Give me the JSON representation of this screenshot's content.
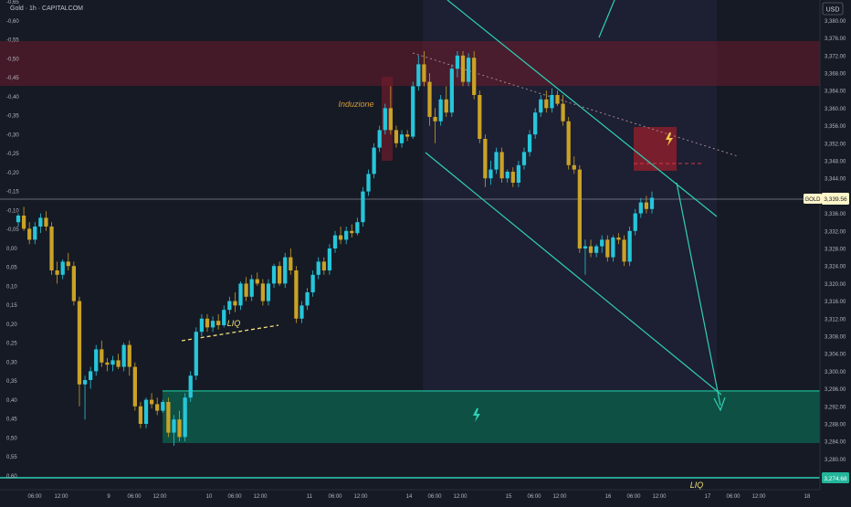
{
  "chart_data": {
    "type": "candlestick",
    "title": "Gold · 1h · CAPITALCOM",
    "currency": "USD",
    "symbol_tag": "GOLD",
    "current_price_label": "3,339.56",
    "last_price": 3339.56,
    "bottom_price_label": "3,274.68",
    "y_right_ticks": [
      "3,380.00",
      "3,376.00",
      "3,372.00",
      "3,368.00",
      "3,364.00",
      "3,360.00",
      "3,356.00",
      "3,352.00",
      "3,348.00",
      "3,344.00",
      "3,340.00",
      "3,336.00",
      "3,332.00",
      "3,328.00",
      "3,324.00",
      "3,320.00",
      "3,316.00",
      "3,312.00",
      "3,308.00",
      "3,304.00",
      "3,300.00",
      "3,296.00",
      "3,292.00",
      "3,288.00",
      "3,284.00",
      "3,280.00",
      "3,276.00"
    ],
    "y_left_ticks": [
      "-0,65",
      "-0,60",
      "-0,55",
      "-0,50",
      "-0,45",
      "-0,40",
      "-0,35",
      "-0,30",
      "-0,25",
      "-0,20",
      "-0,15",
      "-0,10",
      "-0,05",
      "0,00",
      "0,05",
      "0,10",
      "0,15",
      "0,20",
      "0,25",
      "0,30",
      "0,35",
      "0,40",
      "0,45",
      "0,50",
      "0,55",
      "0,60"
    ],
    "x_ticks": [
      "06:00",
      "12:00",
      "9",
      "06:00",
      "12:00",
      "10",
      "06:00",
      "12:00",
      "11",
      "06:00",
      "12:00",
      "14",
      "06:00",
      "12:00",
      "15",
      "06:00",
      "12:00",
      "16",
      "06:00",
      "12:00",
      "17",
      "06:00",
      "12:00",
      "18"
    ],
    "ylim": [
      3273,
      3383
    ],
    "colors": {
      "up": "#26c6da",
      "down": "#c9a227",
      "resistance_zone": "#7a1f2f",
      "support_zone": "#0e5e4c",
      "trendline": "#36d3b8",
      "dotted": "#f1e27a"
    },
    "annotations": {
      "induzione": "Induzione",
      "liq_left": "LIQ",
      "liq_bottom": "LIQ"
    },
    "candles": [
      {
        "o": 3334.0,
        "h": 3336.0,
        "l": 3333.0,
        "c": 3335.5
      },
      {
        "o": 3335.5,
        "h": 3337.5,
        "l": 3332.0,
        "c": 3332.5
      },
      {
        "o": 3332.5,
        "h": 3334.0,
        "l": 3329.0,
        "c": 3330.0
      },
      {
        "o": 3330.0,
        "h": 3334.0,
        "l": 3329.0,
        "c": 3333.0
      },
      {
        "o": 3333.0,
        "h": 3336.0,
        "l": 3331.5,
        "c": 3335.0
      },
      {
        "o": 3335.0,
        "h": 3336.5,
        "l": 3332.0,
        "c": 3333.0
      },
      {
        "o": 3333.0,
        "h": 3334.0,
        "l": 3322.0,
        "c": 3323.0
      },
      {
        "o": 3323.0,
        "h": 3325.0,
        "l": 3320.0,
        "c": 3322.0
      },
      {
        "o": 3322.0,
        "h": 3325.5,
        "l": 3321.0,
        "c": 3325.0
      },
      {
        "o": 3325.0,
        "h": 3327.0,
        "l": 3323.0,
        "c": 3324.0
      },
      {
        "o": 3324.0,
        "h": 3325.0,
        "l": 3315.0,
        "c": 3316.0
      },
      {
        "o": 3316.0,
        "h": 3317.0,
        "l": 3292.0,
        "c": 3297.0
      },
      {
        "o": 3297.0,
        "h": 3299.0,
        "l": 3289.0,
        "c": 3298.0
      },
      {
        "o": 3298.0,
        "h": 3301.0,
        "l": 3296.0,
        "c": 3300.0
      },
      {
        "o": 3300.0,
        "h": 3306.0,
        "l": 3299.0,
        "c": 3305.0
      },
      {
        "o": 3305.0,
        "h": 3307.0,
        "l": 3301.0,
        "c": 3302.0
      },
      {
        "o": 3302.0,
        "h": 3303.0,
        "l": 3300.0,
        "c": 3301.5
      },
      {
        "o": 3301.5,
        "h": 3303.5,
        "l": 3300.0,
        "c": 3302.5
      },
      {
        "o": 3302.5,
        "h": 3304.0,
        "l": 3300.5,
        "c": 3301.0
      },
      {
        "o": 3301.0,
        "h": 3306.5,
        "l": 3300.0,
        "c": 3306.0
      },
      {
        "o": 3306.0,
        "h": 3307.0,
        "l": 3299.0,
        "c": 3301.0
      },
      {
        "o": 3301.0,
        "h": 3302.0,
        "l": 3291.0,
        "c": 3292.0
      },
      {
        "o": 3292.0,
        "h": 3293.0,
        "l": 3287.0,
        "c": 3288.0
      },
      {
        "o": 3288.0,
        "h": 3294.0,
        "l": 3287.0,
        "c": 3293.5
      },
      {
        "o": 3293.5,
        "h": 3295.0,
        "l": 3291.5,
        "c": 3292.5
      },
      {
        "o": 3292.5,
        "h": 3294.0,
        "l": 3290.0,
        "c": 3291.0
      },
      {
        "o": 3291.0,
        "h": 3293.5,
        "l": 3290.5,
        "c": 3293.0
      },
      {
        "o": 3293.0,
        "h": 3294.0,
        "l": 3285.0,
        "c": 3286.0
      },
      {
        "o": 3286.0,
        "h": 3290.0,
        "l": 3283.0,
        "c": 3289.0
      },
      {
        "o": 3289.0,
        "h": 3291.0,
        "l": 3284.0,
        "c": 3285.0
      },
      {
        "o": 3285.0,
        "h": 3295.0,
        "l": 3284.0,
        "c": 3294.0
      },
      {
        "o": 3294.0,
        "h": 3300.0,
        "l": 3293.0,
        "c": 3299.0
      },
      {
        "o": 3299.0,
        "h": 3310.0,
        "l": 3298.0,
        "c": 3309.0
      },
      {
        "o": 3309.0,
        "h": 3313.0,
        "l": 3308.0,
        "c": 3312.0
      },
      {
        "o": 3312.0,
        "h": 3313.0,
        "l": 3309.0,
        "c": 3310.0
      },
      {
        "o": 3310.0,
        "h": 3312.5,
        "l": 3309.0,
        "c": 3311.5
      },
      {
        "o": 3311.5,
        "h": 3313.0,
        "l": 3309.5,
        "c": 3310.5
      },
      {
        "o": 3310.5,
        "h": 3315.0,
        "l": 3310.0,
        "c": 3314.0
      },
      {
        "o": 3314.0,
        "h": 3317.0,
        "l": 3313.0,
        "c": 3316.0
      },
      {
        "o": 3316.0,
        "h": 3318.0,
        "l": 3313.5,
        "c": 3315.0
      },
      {
        "o": 3315.0,
        "h": 3320.5,
        "l": 3314.0,
        "c": 3320.0
      },
      {
        "o": 3320.0,
        "h": 3321.5,
        "l": 3316.0,
        "c": 3317.0
      },
      {
        "o": 3317.0,
        "h": 3322.0,
        "l": 3316.0,
        "c": 3321.0
      },
      {
        "o": 3321.0,
        "h": 3322.5,
        "l": 3319.5,
        "c": 3320.0
      },
      {
        "o": 3320.0,
        "h": 3321.0,
        "l": 3315.0,
        "c": 3316.0
      },
      {
        "o": 3316.0,
        "h": 3321.0,
        "l": 3315.0,
        "c": 3320.0
      },
      {
        "o": 3320.0,
        "h": 3324.5,
        "l": 3319.0,
        "c": 3324.0
      },
      {
        "o": 3324.0,
        "h": 3325.0,
        "l": 3319.5,
        "c": 3320.0
      },
      {
        "o": 3320.0,
        "h": 3327.0,
        "l": 3319.0,
        "c": 3326.0
      },
      {
        "o": 3326.0,
        "h": 3328.0,
        "l": 3322.0,
        "c": 3323.0
      },
      {
        "o": 3323.0,
        "h": 3324.0,
        "l": 3311.0,
        "c": 3312.0
      },
      {
        "o": 3312.0,
        "h": 3316.0,
        "l": 3311.0,
        "c": 3315.0
      },
      {
        "o": 3315.0,
        "h": 3319.0,
        "l": 3314.0,
        "c": 3318.0
      },
      {
        "o": 3318.0,
        "h": 3323.0,
        "l": 3317.0,
        "c": 3322.0
      },
      {
        "o": 3322.0,
        "h": 3326.0,
        "l": 3321.0,
        "c": 3325.0
      },
      {
        "o": 3325.0,
        "h": 3326.0,
        "l": 3322.0,
        "c": 3323.0
      },
      {
        "o": 3323.0,
        "h": 3329.0,
        "l": 3322.0,
        "c": 3328.0
      },
      {
        "o": 3328.0,
        "h": 3332.0,
        "l": 3327.0,
        "c": 3331.0
      },
      {
        "o": 3331.0,
        "h": 3333.0,
        "l": 3329.0,
        "c": 3330.0
      },
      {
        "o": 3330.0,
        "h": 3333.0,
        "l": 3329.0,
        "c": 3332.0
      },
      {
        "o": 3332.0,
        "h": 3333.5,
        "l": 3330.5,
        "c": 3331.5
      },
      {
        "o": 3331.5,
        "h": 3335.0,
        "l": 3331.0,
        "c": 3334.0
      },
      {
        "o": 3334.0,
        "h": 3342.0,
        "l": 3333.0,
        "c": 3341.0
      },
      {
        "o": 3341.0,
        "h": 3346.0,
        "l": 3340.0,
        "c": 3345.0
      },
      {
        "o": 3345.0,
        "h": 3352.0,
        "l": 3344.0,
        "c": 3351.0
      },
      {
        "o": 3351.0,
        "h": 3356.0,
        "l": 3350.0,
        "c": 3355.0
      },
      {
        "o": 3355.0,
        "h": 3361.0,
        "l": 3354.0,
        "c": 3360.0
      },
      {
        "o": 3360.0,
        "h": 3365.0,
        "l": 3354.0,
        "c": 3355.0
      },
      {
        "o": 3355.0,
        "h": 3356.0,
        "l": 3351.0,
        "c": 3352.0
      },
      {
        "o": 3352.0,
        "h": 3355.0,
        "l": 3351.0,
        "c": 3354.0
      },
      {
        "o": 3354.0,
        "h": 3355.0,
        "l": 3352.5,
        "c": 3353.5
      },
      {
        "o": 3353.5,
        "h": 3366.0,
        "l": 3353.0,
        "c": 3365.0
      },
      {
        "o": 3365.0,
        "h": 3372.0,
        "l": 3364.0,
        "c": 3370.0
      },
      {
        "o": 3370.0,
        "h": 3373.0,
        "l": 3365.0,
        "c": 3366.0
      },
      {
        "o": 3366.0,
        "h": 3368.0,
        "l": 3356.0,
        "c": 3358.0
      },
      {
        "o": 3358.0,
        "h": 3360.0,
        "l": 3352.0,
        "c": 3357.0
      },
      {
        "o": 3357.0,
        "h": 3363.0,
        "l": 3356.0,
        "c": 3362.0
      },
      {
        "o": 3362.0,
        "h": 3365.0,
        "l": 3358.0,
        "c": 3359.0
      },
      {
        "o": 3359.0,
        "h": 3370.0,
        "l": 3358.0,
        "c": 3369.0
      },
      {
        "o": 3369.0,
        "h": 3373.0,
        "l": 3367.0,
        "c": 3372.0
      },
      {
        "o": 3372.0,
        "h": 3373.0,
        "l": 3365.0,
        "c": 3366.0
      },
      {
        "o": 3366.0,
        "h": 3372.5,
        "l": 3365.0,
        "c": 3371.5
      },
      {
        "o": 3371.5,
        "h": 3373.0,
        "l": 3362.0,
        "c": 3363.0
      },
      {
        "o": 3363.0,
        "h": 3364.0,
        "l": 3352.0,
        "c": 3353.0
      },
      {
        "o": 3353.0,
        "h": 3354.0,
        "l": 3342.0,
        "c": 3344.0
      },
      {
        "o": 3344.0,
        "h": 3348.0,
        "l": 3342.5,
        "c": 3346.0
      },
      {
        "o": 3346.0,
        "h": 3351.0,
        "l": 3345.0,
        "c": 3350.0
      },
      {
        "o": 3350.0,
        "h": 3351.0,
        "l": 3343.0,
        "c": 3344.0
      },
      {
        "o": 3344.0,
        "h": 3346.0,
        "l": 3343.0,
        "c": 3345.5
      },
      {
        "o": 3345.5,
        "h": 3346.5,
        "l": 3342.0,
        "c": 3343.0
      },
      {
        "o": 3343.0,
        "h": 3348.0,
        "l": 3342.0,
        "c": 3347.0
      },
      {
        "o": 3347.0,
        "h": 3351.0,
        "l": 3346.0,
        "c": 3350.0
      },
      {
        "o": 3350.0,
        "h": 3355.0,
        "l": 3349.0,
        "c": 3354.0
      },
      {
        "o": 3354.0,
        "h": 3360.0,
        "l": 3353.0,
        "c": 3359.0
      },
      {
        "o": 3359.0,
        "h": 3363.0,
        "l": 3358.0,
        "c": 3362.0
      },
      {
        "o": 3362.0,
        "h": 3364.0,
        "l": 3359.0,
        "c": 3360.0
      },
      {
        "o": 3360.0,
        "h": 3364.5,
        "l": 3359.0,
        "c": 3363.0
      },
      {
        "o": 3363.0,
        "h": 3364.0,
        "l": 3360.5,
        "c": 3361.0
      },
      {
        "o": 3361.0,
        "h": 3363.0,
        "l": 3356.0,
        "c": 3357.0
      },
      {
        "o": 3357.0,
        "h": 3358.0,
        "l": 3346.0,
        "c": 3347.0
      },
      {
        "o": 3347.0,
        "h": 3349.0,
        "l": 3345.0,
        "c": 3346.0
      },
      {
        "o": 3346.0,
        "h": 3347.0,
        "l": 3327.0,
        "c": 3328.0
      },
      {
        "o": 3328.0,
        "h": 3330.0,
        "l": 3322.0,
        "c": 3328.5
      },
      {
        "o": 3328.5,
        "h": 3330.0,
        "l": 3326.0,
        "c": 3327.0
      },
      {
        "o": 3327.0,
        "h": 3329.0,
        "l": 3326.0,
        "c": 3328.5
      },
      {
        "o": 3328.5,
        "h": 3331.0,
        "l": 3327.0,
        "c": 3330.0
      },
      {
        "o": 3330.0,
        "h": 3331.0,
        "l": 3325.0,
        "c": 3326.0
      },
      {
        "o": 3326.0,
        "h": 3331.0,
        "l": 3325.0,
        "c": 3330.5
      },
      {
        "o": 3330.5,
        "h": 3331.5,
        "l": 3329.0,
        "c": 3330.0
      },
      {
        "o": 3330.0,
        "h": 3331.0,
        "l": 3324.0,
        "c": 3325.0
      },
      {
        "o": 3325.0,
        "h": 3333.0,
        "l": 3324.0,
        "c": 3332.0
      },
      {
        "o": 3332.0,
        "h": 3337.0,
        "l": 3331.0,
        "c": 3336.0
      },
      {
        "o": 3336.0,
        "h": 3339.5,
        "l": 3335.0,
        "c": 3338.5
      },
      {
        "o": 3338.5,
        "h": 3340.0,
        "l": 3336.0,
        "c": 3337.0
      },
      {
        "o": 3337.0,
        "h": 3341.0,
        "l": 3336.0,
        "c": 3339.56
      }
    ]
  }
}
